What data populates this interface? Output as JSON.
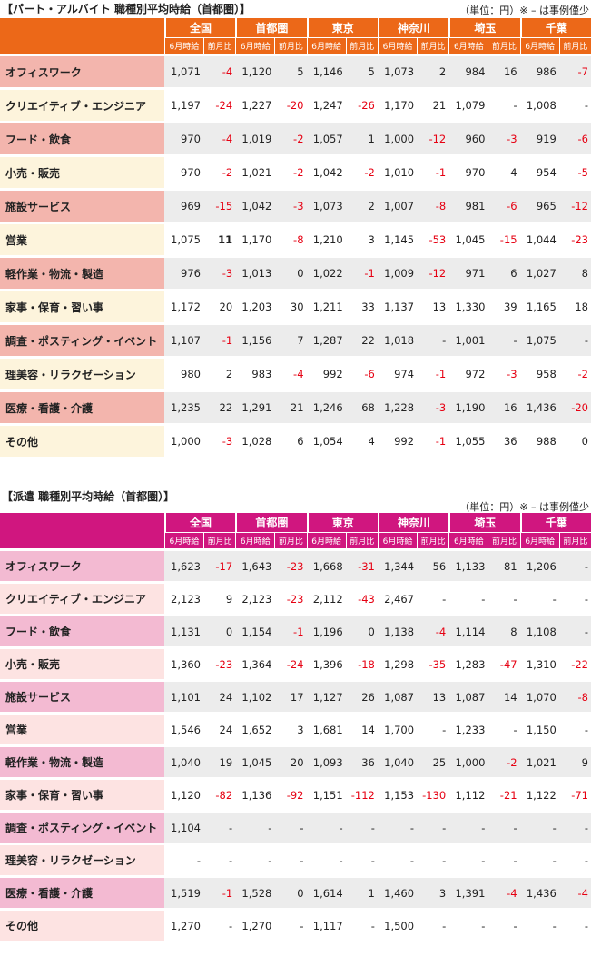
{
  "colors": {
    "parttime_header": "#ec6818",
    "dispatch_header": "#d0167f",
    "negative": "#e60012"
  },
  "regions": [
    "全国",
    "首都圏",
    "東京",
    "神奈川",
    "埼玉",
    "千葉"
  ],
  "sub_headers": {
    "current": "6月時給",
    "change": "前月比"
  },
  "parttime": {
    "title": "【パート・アルバイト 職種別平均時給（首都圏）】",
    "unit_note": "（単位：円）※ – は事例僅少",
    "rows": [
      {
        "category": "オフィスワーク",
        "cells": [
          "1,071",
          "-4",
          "1,120",
          "5",
          "1,146",
          "5",
          "1,073",
          "2",
          "984",
          "16",
          "986",
          "-7"
        ]
      },
      {
        "category": "クリエイティブ・エンジニア",
        "cells": [
          "1,197",
          "-24",
          "1,227",
          "-20",
          "1,247",
          "-26",
          "1,170",
          "21",
          "1,079",
          "-",
          "1,008",
          "-"
        ]
      },
      {
        "category": "フード・飲食",
        "cells": [
          "970",
          "-4",
          "1,019",
          "-2",
          "1,057",
          "1",
          "1,000",
          "-12",
          "960",
          "-3",
          "919",
          "-6"
        ]
      },
      {
        "category": "小売・販売",
        "cells": [
          "970",
          "-2",
          "1,021",
          "-2",
          "1,042",
          "-2",
          "1,010",
          "-1",
          "970",
          "4",
          "954",
          "-5"
        ]
      },
      {
        "category": "施設サービス",
        "cells": [
          "969",
          "-15",
          "1,042",
          "-3",
          "1,073",
          "2",
          "1,007",
          "-8",
          "981",
          "-6",
          "965",
          "-12"
        ]
      },
      {
        "category": "営業",
        "cells": [
          "1,075",
          "11",
          "1,170",
          "-8",
          "1,210",
          "3",
          "1,145",
          "-53",
          "1,045",
          "-15",
          "1,044",
          "-23"
        ]
      },
      {
        "category": "軽作業・物流・製造",
        "cells": [
          "976",
          "-3",
          "1,013",
          "0",
          "1,022",
          "-1",
          "1,009",
          "-12",
          "971",
          "6",
          "1,027",
          "8"
        ]
      },
      {
        "category": "家事・保育・習い事",
        "cells": [
          "1,172",
          "20",
          "1,203",
          "30",
          "1,211",
          "33",
          "1,137",
          "13",
          "1,330",
          "39",
          "1,165",
          "18"
        ]
      },
      {
        "category": "調査・ポスティング・イベント",
        "cells": [
          "1,107",
          "-1",
          "1,156",
          "7",
          "1,287",
          "22",
          "1,018",
          "-",
          "1,001",
          "-",
          "1,075",
          "-"
        ]
      },
      {
        "category": "理美容・リラクゼーション",
        "cells": [
          "980",
          "2",
          "983",
          "-4",
          "992",
          "-6",
          "974",
          "-1",
          "972",
          "-3",
          "958",
          "-2"
        ]
      },
      {
        "category": "医療・看護・介護",
        "cells": [
          "1,235",
          "22",
          "1,291",
          "21",
          "1,246",
          "68",
          "1,228",
          "-3",
          "1,190",
          "16",
          "1,436",
          "-20"
        ]
      },
      {
        "category": "その他",
        "cells": [
          "1,000",
          "-3",
          "1,028",
          "6",
          "1,054",
          "4",
          "992",
          "-1",
          "1,055",
          "36",
          "988",
          "0"
        ]
      }
    ]
  },
  "dispatch": {
    "title": "【派遣 職種別平均時給（首都圏）】",
    "unit_note": "（単位：円）※ – は事例僅少",
    "rows": [
      {
        "category": "オフィスワーク",
        "cells": [
          "1,623",
          "-17",
          "1,643",
          "-23",
          "1,668",
          "-31",
          "1,344",
          "56",
          "1,133",
          "81",
          "1,206",
          "-"
        ]
      },
      {
        "category": "クリエイティブ・エンジニア",
        "cells": [
          "2,123",
          "9",
          "2,123",
          "-23",
          "2,112",
          "-43",
          "2,467",
          "-",
          "-",
          "-",
          "-",
          "-"
        ]
      },
      {
        "category": "フード・飲食",
        "cells": [
          "1,131",
          "0",
          "1,154",
          "-1",
          "1,196",
          "0",
          "1,138",
          "-4",
          "1,114",
          "8",
          "1,108",
          "-"
        ]
      },
      {
        "category": "小売・販売",
        "cells": [
          "1,360",
          "-23",
          "1,364",
          "-24",
          "1,396",
          "-18",
          "1,298",
          "-35",
          "1,283",
          "-47",
          "1,310",
          "-22"
        ]
      },
      {
        "category": "施設サービス",
        "cells": [
          "1,101",
          "24",
          "1,102",
          "17",
          "1,127",
          "26",
          "1,087",
          "13",
          "1,087",
          "14",
          "1,070",
          "-8"
        ]
      },
      {
        "category": "営業",
        "cells": [
          "1,546",
          "24",
          "1,652",
          "3",
          "1,681",
          "14",
          "1,700",
          "-",
          "1,233",
          "-",
          "1,150",
          "-"
        ]
      },
      {
        "category": "軽作業・物流・製造",
        "cells": [
          "1,040",
          "19",
          "1,045",
          "20",
          "1,093",
          "36",
          "1,040",
          "25",
          "1,000",
          "-2",
          "1,021",
          "9"
        ]
      },
      {
        "category": "家事・保育・習い事",
        "cells": [
          "1,120",
          "-82",
          "1,136",
          "-92",
          "1,151",
          "-112",
          "1,153",
          "-130",
          "1,112",
          "-21",
          "1,122",
          "-71"
        ]
      },
      {
        "category": "調査・ポスティング・イベント",
        "cells": [
          "1,104",
          "-",
          "-",
          "-",
          "-",
          "-",
          "-",
          "-",
          "-",
          "-",
          "-",
          "-"
        ]
      },
      {
        "category": "理美容・リラクゼーション",
        "cells": [
          "-",
          "-",
          "-",
          "-",
          "-",
          "-",
          "-",
          "-",
          "-",
          "-",
          "-",
          "-"
        ]
      },
      {
        "category": "医療・看護・介護",
        "cells": [
          "1,519",
          "-1",
          "1,528",
          "0",
          "1,614",
          "1",
          "1,460",
          "3",
          "1,391",
          "-4",
          "1,436",
          "-4"
        ]
      },
      {
        "category": "その他",
        "cells": [
          "1,270",
          "-",
          "1,270",
          "-",
          "1,117",
          "-",
          "1,500",
          "-",
          "-",
          "-",
          "-",
          "-"
        ]
      }
    ]
  }
}
